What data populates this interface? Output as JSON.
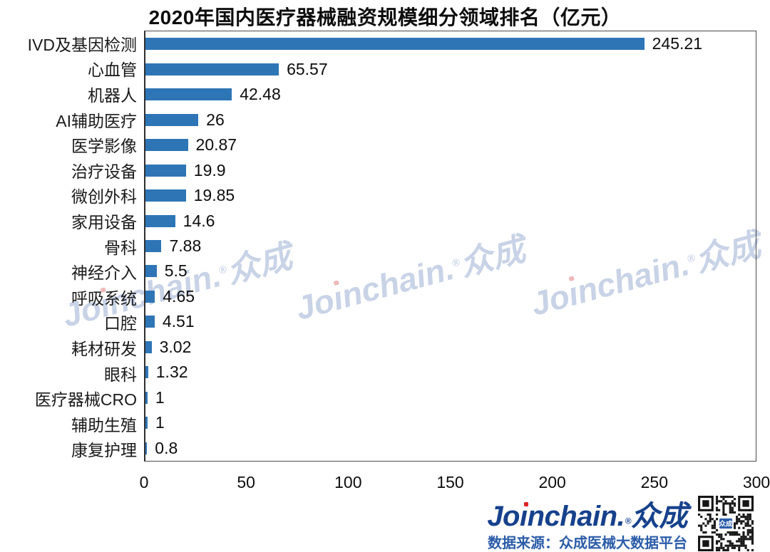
{
  "title": "2020年国内医疗器械融资规模细分领域排名（亿元）",
  "chart_data": {
    "type": "bar",
    "orientation": "horizontal",
    "title": "2020年国内医疗器械融资规模细分领域排名（亿元）",
    "categories": [
      "IVD及基因检测",
      "心血管",
      "机器人",
      "AI辅助医疗",
      "医学影像",
      "治疗设备",
      "微创外科",
      "家用设备",
      "骨科",
      "神经介入",
      "呼吸系统",
      "口腔",
      "耗材研发",
      "眼科",
      "医疗器械CRO",
      "辅助生殖",
      "康复护理"
    ],
    "values": [
      245.21,
      65.57,
      42.48,
      26,
      20.87,
      19.9,
      19.85,
      14.6,
      7.88,
      5.5,
      4.65,
      4.51,
      3.02,
      1.32,
      1,
      1,
      0.8
    ],
    "value_labels": [
      "245.21",
      "65.57",
      "42.48",
      "26",
      "20.87",
      "19.9",
      "19.85",
      "14.6",
      "7.88",
      "5.5",
      "4.65",
      "4.51",
      "3.02",
      "1.32",
      "1",
      "1",
      "0.8"
    ],
    "xlim": [
      0,
      300
    ],
    "x_ticks": [
      0,
      50,
      100,
      150,
      200,
      250,
      300
    ],
    "xlabel": "",
    "ylabel": "",
    "unit": "亿元",
    "bar_color": "#2E75B6",
    "grid": false,
    "legend": "none"
  },
  "brand": {
    "p1": "Jo",
    "i": "ı",
    "p2": "nchain",
    "dot": ".",
    "reg": "®",
    "cjk": "众成"
  },
  "footer": {
    "source_text": "数据来源：众成医械大数据平台"
  },
  "qr": {
    "center_text": "众成"
  },
  "colors": {
    "bar": "#2E75B6",
    "logo_navy": "#16418C",
    "logo_red_dot": "#E02424",
    "source_blue": "#2B5CA8",
    "watermark": "#C9D3E7"
  }
}
